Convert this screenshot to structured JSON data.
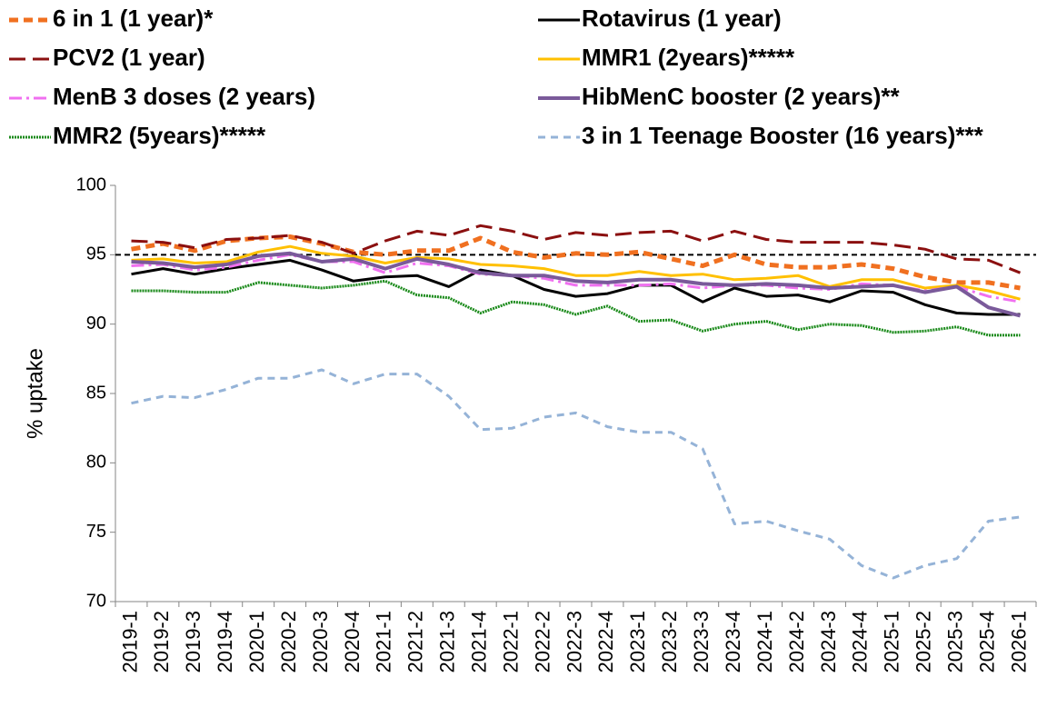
{
  "chart_data": {
    "type": "line",
    "y_label": "% uptake",
    "categories": [
      "2019-1",
      "2019-2",
      "2019-3",
      "2019-4",
      "2020-1",
      "2020-2",
      "2020-3",
      "2020-4",
      "2021-1",
      "2021-2",
      "2021-3",
      "2021-4",
      "2022-1",
      "2022-2",
      "2022-3",
      "2022-4",
      "2023-1",
      "2023-2",
      "2023-3",
      "2023-4",
      "2024-1",
      "2024-2",
      "2024-3",
      "2024-4",
      "2025-1",
      "2025-2",
      "2025-3",
      "2025-4",
      "2026-1"
    ],
    "ylim": [
      70,
      100
    ],
    "yticks": [
      70,
      75,
      80,
      85,
      90,
      95,
      100
    ],
    "target_line": 95,
    "series": [
      {
        "name": "6 in 1 (1 year)*",
        "color": "#f07020",
        "style": "thick-dash",
        "values": [
          95.4,
          95.8,
          95.3,
          96.0,
          96.2,
          96.3,
          95.8,
          95.2,
          95.0,
          95.3,
          95.3,
          96.2,
          95.2,
          94.8,
          95.1,
          95.0,
          95.2,
          94.7,
          94.2,
          95.0,
          94.3,
          94.1,
          94.1,
          94.3,
          94.0,
          93.4,
          93.0,
          93.0,
          92.6
        ]
      },
      {
        "name": "Rotavirus (1 year)",
        "color": "#000000",
        "style": "solid",
        "values": [
          93.6,
          94.0,
          93.6,
          94.0,
          94.3,
          94.6,
          93.9,
          93.1,
          93.4,
          93.5,
          92.7,
          93.9,
          93.5,
          92.5,
          92.0,
          92.2,
          92.8,
          92.8,
          91.6,
          92.6,
          92.0,
          92.1,
          91.6,
          92.4,
          92.3,
          91.4,
          90.8,
          90.7,
          90.7
        ]
      },
      {
        "name": "PCV2 (1 year)",
        "color": "#8b1010",
        "style": "long-dash",
        "values": [
          96.0,
          95.9,
          95.5,
          96.1,
          96.2,
          96.4,
          95.9,
          95.1,
          96.0,
          96.7,
          96.4,
          97.1,
          96.7,
          96.1,
          96.6,
          96.4,
          96.6,
          96.7,
          96.0,
          96.7,
          96.1,
          95.9,
          95.9,
          95.9,
          95.7,
          95.4,
          94.7,
          94.6,
          93.7
        ]
      },
      {
        "name": "MMR1 (2years)*****",
        "color": "#ffc000",
        "style": "solid",
        "values": [
          94.6,
          94.7,
          94.4,
          94.5,
          95.2,
          95.6,
          95.1,
          94.9,
          94.4,
          94.8,
          94.7,
          94.3,
          94.2,
          94.0,
          93.5,
          93.5,
          93.8,
          93.5,
          93.6,
          93.2,
          93.3,
          93.5,
          92.7,
          93.2,
          93.2,
          92.6,
          92.8,
          92.4,
          91.8
        ]
      },
      {
        "name": "MenB 3 doses (2 years)",
        "color": "#f070f0",
        "style": "dash-dot",
        "values": [
          94.2,
          94.3,
          93.9,
          94.1,
          94.6,
          95.0,
          94.5,
          94.5,
          93.7,
          94.4,
          94.2,
          93.6,
          93.5,
          93.3,
          92.8,
          92.8,
          92.8,
          92.9,
          92.6,
          92.8,
          92.8,
          92.6,
          92.5,
          92.9,
          92.8,
          92.4,
          92.7,
          92.0,
          91.6
        ]
      },
      {
        "name": "HibMenC booster (2 years)**",
        "color": "#7a5a9a",
        "style": "thick",
        "values": [
          94.5,
          94.4,
          94.1,
          94.3,
          94.9,
          95.1,
          94.5,
          94.7,
          94.0,
          94.7,
          94.3,
          93.7,
          93.5,
          93.5,
          93.1,
          93.0,
          93.2,
          93.2,
          92.9,
          92.8,
          92.9,
          92.8,
          92.6,
          92.7,
          92.8,
          92.3,
          92.7,
          91.2,
          90.6
        ]
      },
      {
        "name": "MMR2 (5years)*****",
        "color": "#1a8a1a",
        "style": "dot",
        "values": [
          92.4,
          92.4,
          92.3,
          92.3,
          93.0,
          92.8,
          92.6,
          92.8,
          93.1,
          92.1,
          91.9,
          90.8,
          91.6,
          91.4,
          90.7,
          91.3,
          90.2,
          90.3,
          89.5,
          90.0,
          90.2,
          89.6,
          90.0,
          89.9,
          89.4,
          89.5,
          89.8,
          89.2,
          89.2
        ]
      },
      {
        "name": "3 in 1 Teenage Booster (16 years)***",
        "color": "#95b3d7",
        "style": "dash",
        "values": [
          84.3,
          84.8,
          84.7,
          85.3,
          86.1,
          86.1,
          86.7,
          85.7,
          86.4,
          86.4,
          84.8,
          82.4,
          82.5,
          83.3,
          83.6,
          82.6,
          82.2,
          82.2,
          81.0,
          75.6,
          75.8,
          75.1,
          74.5,
          72.6,
          71.7,
          72.6,
          73.1,
          75.8,
          76.1
        ]
      }
    ]
  }
}
